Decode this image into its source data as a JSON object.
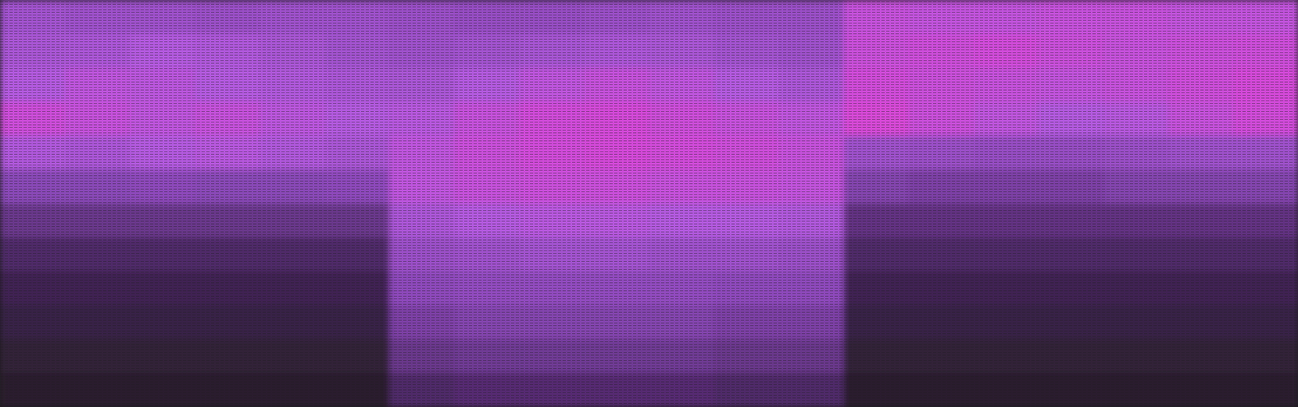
{
  "chart_data": {
    "type": "heatmap",
    "tick_labels": false,
    "grid": false,
    "zlim": [
      0,
      1
    ],
    "colorscale": [
      "#1e1c1f",
      "#4a2560",
      "#8a48b8",
      "#b45ae0",
      "#d848d8",
      "#ff6a8a"
    ],
    "cells": [
      [
        0.52,
        0.5,
        0.5,
        0.48,
        0.5,
        0.5,
        0.48,
        0.46,
        0.46,
        0.48,
        0.5,
        0.48,
        0.48,
        0.7,
        0.68,
        0.68,
        0.7,
        0.7,
        0.68,
        0.68
      ],
      [
        0.55,
        0.56,
        0.6,
        0.58,
        0.55,
        0.52,
        0.5,
        0.52,
        0.54,
        0.56,
        0.55,
        0.52,
        0.5,
        0.72,
        0.74,
        0.76,
        0.72,
        0.7,
        0.72,
        0.74
      ],
      [
        0.6,
        0.66,
        0.64,
        0.6,
        0.58,
        0.56,
        0.55,
        0.6,
        0.66,
        0.7,
        0.66,
        0.6,
        0.56,
        0.76,
        0.72,
        0.7,
        0.68,
        0.7,
        0.74,
        0.78
      ],
      [
        0.74,
        0.7,
        0.66,
        0.7,
        0.64,
        0.6,
        0.62,
        0.7,
        0.76,
        0.78,
        0.74,
        0.7,
        0.66,
        0.8,
        0.72,
        0.66,
        0.6,
        0.62,
        0.7,
        0.76
      ],
      [
        0.58,
        0.56,
        0.6,
        0.62,
        0.58,
        0.55,
        0.66,
        0.72,
        0.76,
        0.78,
        0.76,
        0.74,
        0.7,
        0.5,
        0.48,
        0.46,
        0.46,
        0.48,
        0.5,
        0.5
      ],
      [
        0.4,
        0.4,
        0.42,
        0.4,
        0.4,
        0.42,
        0.66,
        0.7,
        0.72,
        0.72,
        0.7,
        0.7,
        0.68,
        0.38,
        0.36,
        0.36,
        0.36,
        0.38,
        0.38,
        0.38
      ],
      [
        0.3,
        0.3,
        0.3,
        0.3,
        0.3,
        0.3,
        0.56,
        0.6,
        0.62,
        0.62,
        0.6,
        0.6,
        0.58,
        0.28,
        0.28,
        0.28,
        0.28,
        0.28,
        0.28,
        0.28
      ],
      [
        0.22,
        0.22,
        0.22,
        0.22,
        0.22,
        0.22,
        0.48,
        0.5,
        0.52,
        0.52,
        0.5,
        0.5,
        0.48,
        0.22,
        0.22,
        0.22,
        0.22,
        0.22,
        0.22,
        0.22
      ],
      [
        0.16,
        0.16,
        0.16,
        0.16,
        0.16,
        0.16,
        0.42,
        0.44,
        0.44,
        0.44,
        0.44,
        0.42,
        0.42,
        0.16,
        0.16,
        0.16,
        0.16,
        0.16,
        0.16,
        0.16
      ],
      [
        0.12,
        0.12,
        0.12,
        0.12,
        0.12,
        0.12,
        0.36,
        0.38,
        0.38,
        0.38,
        0.38,
        0.36,
        0.36,
        0.12,
        0.12,
        0.12,
        0.12,
        0.12,
        0.12,
        0.12
      ],
      [
        0.08,
        0.08,
        0.08,
        0.08,
        0.08,
        0.08,
        0.3,
        0.32,
        0.32,
        0.32,
        0.32,
        0.3,
        0.3,
        0.08,
        0.08,
        0.08,
        0.08,
        0.08,
        0.08,
        0.08
      ],
      [
        0.05,
        0.05,
        0.05,
        0.05,
        0.05,
        0.05,
        0.22,
        0.24,
        0.24,
        0.24,
        0.24,
        0.22,
        0.22,
        0.05,
        0.05,
        0.05,
        0.05,
        0.05,
        0.05,
        0.05
      ]
    ]
  }
}
